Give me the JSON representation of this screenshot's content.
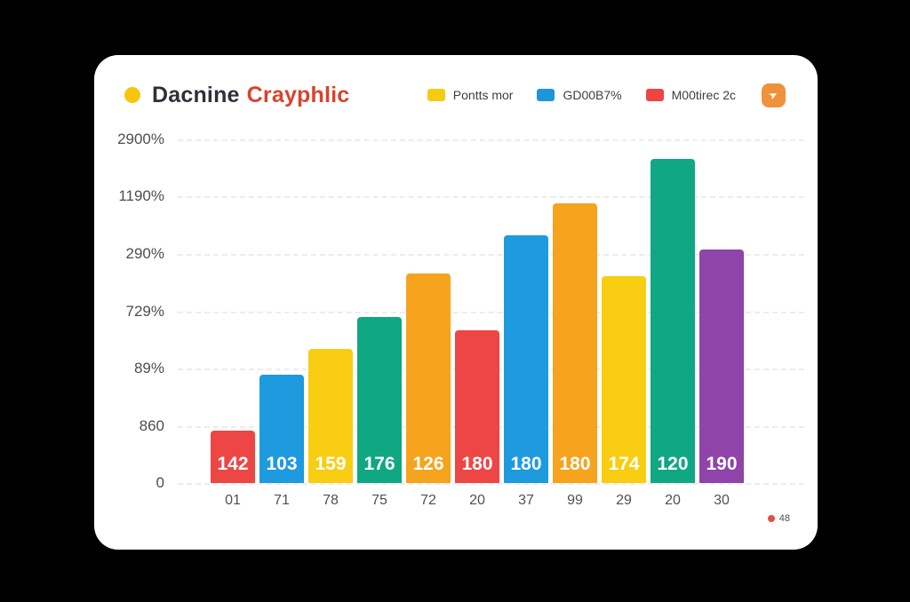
{
  "page": {
    "background": "#000000",
    "card_background": "#ffffff"
  },
  "header": {
    "dot_color": "#F6C50F",
    "title": {
      "part1": "Dacnine",
      "part2": "Crayphlic",
      "part1_color": "#2E3138",
      "part2_color": "#D8432E"
    },
    "legend": [
      {
        "label": "Pontts mor",
        "color": "#F6CC12"
      },
      {
        "label": "GD00B7%",
        "color": "#1E96DC"
      },
      {
        "label": "M00tirec 2c",
        "color": "#EF4444"
      }
    ],
    "action_button": {
      "color": "#F0923B",
      "icon": "send-arrow"
    }
  },
  "chart_data": {
    "type": "bar",
    "title": "Dacnine Crayphlic",
    "xlabel": "",
    "ylabel": "",
    "y_axis": {
      "tick_labels": [
        "2900%",
        "1190%",
        "290%",
        "729%",
        "89%",
        "860",
        "0"
      ],
      "grid": "dashed-horizontal"
    },
    "categories": [
      "01",
      "71",
      "78",
      "75",
      "72",
      "20",
      "37",
      "99",
      "29",
      "20",
      "30"
    ],
    "value_labels": [
      "142",
      "103",
      "159",
      "176",
      "126",
      "180",
      "180",
      "180",
      "174",
      "120",
      "190"
    ],
    "bar_colors": [
      "#EE4545",
      "#1E9ADE",
      "#F8CD12",
      "#10A783",
      "#F6A31E",
      "#EE4545",
      "#1E9ADE",
      "#F6A31E",
      "#F8CD12",
      "#10A783",
      "#8E44A8"
    ],
    "bar_heights_pct": [
      15.2,
      31.5,
      39,
      48.3,
      61,
      44.4,
      72.1,
      81.4,
      60.2,
      94.3,
      68
    ],
    "value_label_color": "#ffffff",
    "legend_position": "top-right"
  },
  "footnote": {
    "dot_color": "#DD5148",
    "text": "48"
  }
}
